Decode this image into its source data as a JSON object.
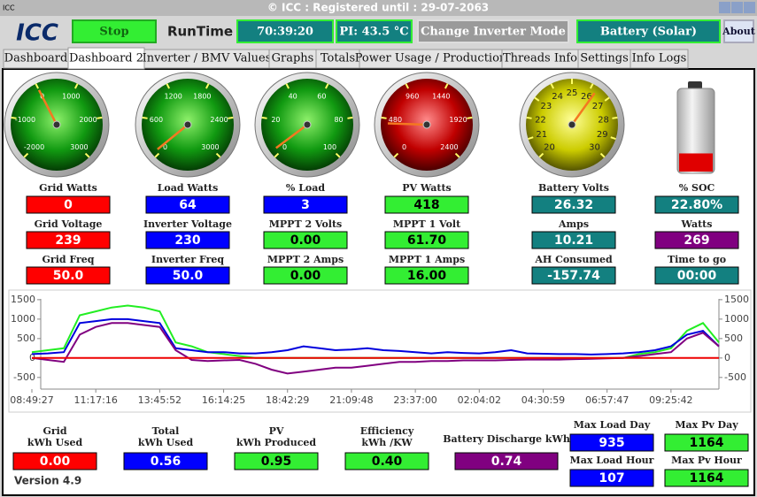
{
  "window": {
    "icon": "ICC",
    "title": "© ICC : Registered until : 29-07-2063"
  },
  "toolbar": {
    "logo": "ICC",
    "stop": "Stop",
    "runtime_label": "RunTime",
    "runtime": "70:39:20",
    "pi": "PI: 43.5 °C",
    "mode_button": "Change Inverter Mode",
    "battery_mode": "Battery (Solar)",
    "about": "About"
  },
  "tabs": [
    "Dashboard",
    "Dashboard 2",
    "Inverter / BMV Values",
    "Graphs",
    "Totals",
    "Power Usage / Production",
    "Threads Info",
    "Settings",
    "Info Logs"
  ],
  "active_tab": 1,
  "gauges": [
    {
      "face": "green",
      "ticks": [
        -2000,
        -1000,
        0,
        1000,
        2000,
        3000
      ]
    },
    {
      "face": "green",
      "ticks": [
        0,
        600,
        1200,
        1800,
        2400,
        3000
      ]
    },
    {
      "face": "green",
      "ticks": [
        0,
        20,
        40,
        60,
        80,
        100
      ]
    },
    {
      "face": "red",
      "ticks": [
        0,
        480,
        960,
        1440,
        1920,
        2400
      ]
    },
    {
      "face": "yellow",
      "ticks": [
        20,
        21,
        22,
        23,
        24,
        25,
        26,
        27,
        28,
        29,
        30
      ]
    }
  ],
  "readouts": [
    {
      "label": "Grid Watts",
      "value": "0",
      "color": "#ff0000"
    },
    {
      "label": "Grid Voltage",
      "value": "239",
      "color": "#ff0000"
    },
    {
      "label": "Grid Freq",
      "value": "50.0",
      "color": "#ff0000"
    },
    {
      "label": "Load Watts",
      "value": "64",
      "color": "#0000ff"
    },
    {
      "label": "Inverter Voltage",
      "value": "230",
      "color": "#0000ff"
    },
    {
      "label": "Inverter Freq",
      "value": "50.0",
      "color": "#0000ff"
    },
    {
      "label": "% Load",
      "value": "3",
      "color": "#0000ff"
    },
    {
      "label": "MPPT 2 Volts",
      "value": "0.00",
      "color": "#33ee33"
    },
    {
      "label": "MPPT 2 Amps",
      "value": "0.00",
      "color": "#33ee33"
    },
    {
      "label": "PV Watts",
      "value": "418",
      "color": "#33ee33"
    },
    {
      "label": "MPPT 1 Volt",
      "value": "61.70",
      "color": "#33ee33"
    },
    {
      "label": "MPPT 1 Amps",
      "value": "16.00",
      "color": "#33ee33"
    },
    {
      "label": "Battery Volts",
      "value": "26.32",
      "color": "#138080"
    },
    {
      "label": "Amps",
      "value": "10.21",
      "color": "#138080"
    },
    {
      "label": "AH Consumed",
      "value": "-157.74",
      "color": "#138080"
    },
    {
      "label": "% SOC",
      "value": "22.80%",
      "color": "#138080"
    },
    {
      "label": "Watts",
      "value": "269",
      "color": "#800080"
    },
    {
      "label": "Time to go",
      "value": "00:00",
      "color": "#138080"
    }
  ],
  "chart": {
    "type": "line",
    "x": [
      "08:49:27",
      null,
      null,
      null,
      "11:17:16",
      null,
      null,
      null,
      "13:45:52",
      null,
      null,
      null,
      "16:14:25",
      null,
      null,
      null,
      "18:42:29",
      null,
      null,
      null,
      "21:09:48",
      null,
      null,
      null,
      "23:37:00",
      null,
      null,
      null,
      "02:04:02",
      null,
      null,
      null,
      "04:30:59",
      null,
      null,
      null,
      "06:57:47",
      null,
      null,
      null,
      "09:25:42",
      null,
      null,
      null
    ],
    "ylim": [
      -800,
      1520
    ],
    "yticks": [
      -500,
      0,
      500,
      1000,
      1500
    ],
    "series": [
      {
        "color": "#22ee22",
        "values": [
          150,
          200,
          250,
          1100,
          1200,
          1300,
          1350,
          1300,
          1200,
          400,
          300,
          150,
          100,
          50,
          0,
          0,
          0,
          0,
          0,
          0,
          0,
          0,
          0,
          0,
          0,
          0,
          0,
          0,
          0,
          0,
          0,
          0,
          0,
          0,
          0,
          0,
          0,
          0,
          100,
          150,
          250,
          700,
          900,
          400
        ]
      },
      {
        "color": "#0000dd",
        "values": [
          100,
          120,
          150,
          900,
          950,
          1000,
          1000,
          950,
          900,
          250,
          200,
          150,
          150,
          120,
          120,
          150,
          200,
          300,
          250,
          200,
          220,
          250,
          200,
          180,
          150,
          120,
          150,
          130,
          120,
          150,
          200,
          120,
          110,
          100,
          100,
          90,
          100,
          120,
          150,
          200,
          300,
          600,
          700,
          300
        ]
      },
      {
        "color": "#800080",
        "values": [
          0,
          -50,
          -100,
          600,
          800,
          900,
          900,
          850,
          800,
          200,
          -50,
          -80,
          -60,
          -50,
          -150,
          -300,
          -400,
          -350,
          -300,
          -250,
          -250,
          -200,
          -150,
          -100,
          -100,
          -80,
          -80,
          -60,
          -60,
          -60,
          -50,
          -40,
          -40,
          -40,
          -30,
          -20,
          -10,
          0,
          50,
          100,
          150,
          500,
          650,
          300
        ]
      },
      {
        "color": "#ee0000",
        "values": [
          0,
          0,
          0,
          0,
          0,
          0,
          0,
          0,
          0,
          0,
          0,
          0,
          0,
          0,
          0,
          0,
          0,
          0,
          0,
          0,
          0,
          0,
          0,
          0,
          0,
          0,
          0,
          0,
          0,
          0,
          0,
          0,
          0,
          0,
          0,
          0,
          0,
          0,
          0,
          0,
          0,
          0,
          0,
          0
        ]
      }
    ]
  },
  "totals": [
    {
      "label": [
        "Grid",
        "kWh Used"
      ],
      "value": "0.00",
      "color": "#ff0000"
    },
    {
      "label": [
        "Total",
        "kWh Used"
      ],
      "value": "0.56",
      "color": "#0000ff"
    },
    {
      "label": [
        "PV",
        "kWh Produced"
      ],
      "value": "0.95",
      "color": "#33ee33"
    },
    {
      "label": [
        "Efficiency",
        "kWh /KW"
      ],
      "value": "0.40",
      "color": "#33ee33"
    },
    {
      "label": [
        "Battery Discharge kWh"
      ],
      "value": "0.74",
      "color": "#800080"
    }
  ],
  "version": "Version 4.9",
  "max": [
    {
      "label": "Max Load Day",
      "value": "935",
      "color": "#0000ff"
    },
    {
      "label": "Max Pv Day",
      "value": "1164",
      "color": "#33ee33"
    },
    {
      "label": "Max Load Hour",
      "value": "107",
      "color": "#0000ff"
    },
    {
      "label": "Max Pv Hour",
      "value": "1164",
      "color": "#33ee33"
    }
  ]
}
